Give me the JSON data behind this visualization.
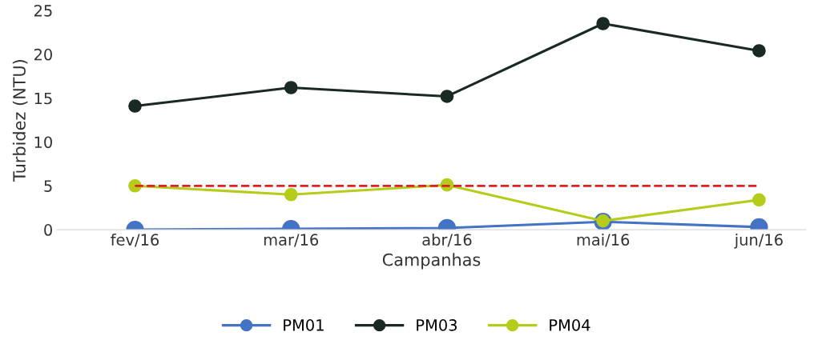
{
  "chart_data": {
    "type": "line",
    "xlabel": "Campanhas",
    "ylabel": "Turbidez (NTU)",
    "categories": [
      "fev/16",
      "mar/16",
      "abr/16",
      "mai/16",
      "jun/16"
    ],
    "series": [
      {
        "name": "PM01",
        "color": "#4472c4",
        "values": [
          0.0,
          0.1,
          0.2,
          0.9,
          0.3
        ]
      },
      {
        "name": "PM03",
        "color": "#1a2a22",
        "values": [
          14.1,
          16.2,
          15.2,
          23.5,
          20.4
        ]
      },
      {
        "name": "PM04",
        "color": "#b5cc1a",
        "values": [
          5.0,
          4.0,
          5.1,
          1.0,
          3.4
        ]
      }
    ],
    "ylim": [
      0,
      25
    ],
    "yticks": [
      0,
      5,
      10,
      15,
      20,
      25
    ],
    "ref_lines": [
      {
        "axis": "y",
        "value": 5,
        "color": "#e02020",
        "line_style": "dashed"
      }
    ],
    "grid": false,
    "legend": "bottom",
    "marker": "circle",
    "line_style": "solid"
  }
}
